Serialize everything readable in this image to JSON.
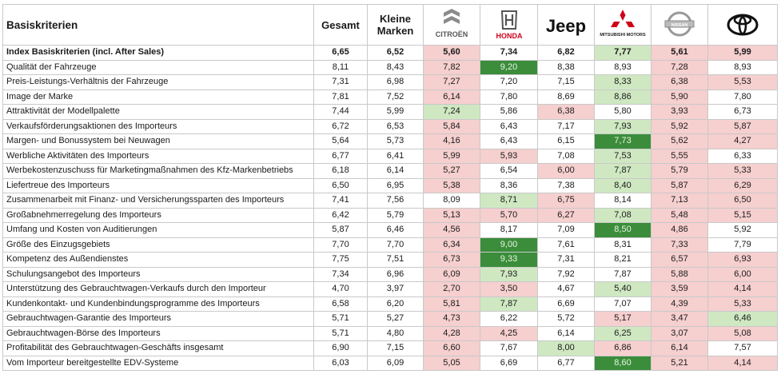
{
  "table": {
    "header": {
      "criteria": "Basiskriterien",
      "gesamt": "Gesamt",
      "kleine": "Kleine\nMarken"
    },
    "brands": [
      {
        "name": "citroen",
        "logo_text": "CITROËN",
        "icon": "citroen-logo-icon"
      },
      {
        "name": "honda",
        "logo_text": "HONDA",
        "icon": "honda-logo-icon"
      },
      {
        "name": "jeep",
        "logo_text": "Jeep",
        "icon": "jeep-logo-icon"
      },
      {
        "name": "mitsubishi",
        "logo_text": "MITSUBISHI MOTORS",
        "icon": "mitsubishi-logo-icon"
      },
      {
        "name": "nissan",
        "logo_text": "NISSAN",
        "icon": "nissan-logo-icon"
      },
      {
        "name": "toyota",
        "logo_text": "",
        "icon": "toyota-logo-icon"
      }
    ],
    "colors": {
      "red": "#f6cfcf",
      "light_green": "#cfe8c2",
      "dark_green": "#3b8d3b"
    },
    "rows": [
      {
        "label": "Index Basiskriterien (incl. After Sales)",
        "bold": true,
        "gesamt": "6,65",
        "kleine": "6,52",
        "vals": [
          "5,60",
          "7,34",
          "6,82",
          "7,77",
          "5,61",
          "5,99"
        ],
        "colors": [
          "r",
          "",
          "",
          "lg",
          "r",
          "r"
        ]
      },
      {
        "label": "Qualität der Fahrzeuge",
        "gesamt": "8,11",
        "kleine": "8,43",
        "vals": [
          "7,82",
          "9,20",
          "8,38",
          "8,93",
          "7,28",
          "8,93"
        ],
        "colors": [
          "r",
          "dg",
          "",
          "",
          "r",
          ""
        ]
      },
      {
        "label": "Preis-Leistungs-Verhältnis der Fahrzeuge",
        "gesamt": "7,31",
        "kleine": "6,98",
        "vals": [
          "7,27",
          "7,20",
          "7,15",
          "8,33",
          "6,38",
          "5,53"
        ],
        "colors": [
          "r",
          "",
          "",
          "lg",
          "r",
          "r"
        ]
      },
      {
        "label": "Image der Marke",
        "gesamt": "7,81",
        "kleine": "7,52",
        "vals": [
          "6,14",
          "7,80",
          "8,69",
          "8,86",
          "5,90",
          "7,80"
        ],
        "colors": [
          "r",
          "",
          "",
          "lg",
          "r",
          ""
        ]
      },
      {
        "label": "Attraktivität der Modellpalette",
        "gesamt": "7,44",
        "kleine": "5,99",
        "vals": [
          "7,24",
          "5,86",
          "6,38",
          "5,80",
          "3,93",
          "6,73"
        ],
        "colors": [
          "lg",
          "",
          "r",
          "",
          "r",
          ""
        ]
      },
      {
        "label": "Verkaufsförderungsaktionen des Importeurs",
        "gesamt": "6,72",
        "kleine": "6,53",
        "vals": [
          "5,84",
          "6,43",
          "7,17",
          "7,93",
          "5,92",
          "5,87"
        ],
        "colors": [
          "r",
          "",
          "",
          "lg",
          "r",
          "r"
        ]
      },
      {
        "label": "Margen- und Bonussystem bei Neuwagen",
        "gesamt": "5,64",
        "kleine": "5,73",
        "vals": [
          "4,16",
          "6,43",
          "6,15",
          "7,73",
          "5,62",
          "4,27"
        ],
        "colors": [
          "r",
          "",
          "",
          "dg",
          "r",
          "r"
        ]
      },
      {
        "label": "Werbliche Aktivitäten des Importeurs",
        "gesamt": "6,77",
        "kleine": "6,41",
        "vals": [
          "5,99",
          "5,93",
          "7,08",
          "7,53",
          "5,55",
          "6,33"
        ],
        "colors": [
          "r",
          "r",
          "",
          "lg",
          "r",
          ""
        ]
      },
      {
        "label": "Werbekostenzuschuss für Marketingmaßnahmen des Kfz-Markenbetriebs",
        "gesamt": "6,18",
        "kleine": "6,14",
        "vals": [
          "5,27",
          "6,54",
          "6,00",
          "7,87",
          "5,79",
          "5,33"
        ],
        "colors": [
          "r",
          "",
          "r",
          "lg",
          "r",
          "r"
        ]
      },
      {
        "label": "Liefertreue des Importeurs",
        "gesamt": "6,50",
        "kleine": "6,95",
        "vals": [
          "5,38",
          "8,36",
          "7,38",
          "8,40",
          "5,87",
          "6,29"
        ],
        "colors": [
          "r",
          "",
          "",
          "lg",
          "r",
          "r"
        ]
      },
      {
        "label": "Zusammenarbeit mit Finanz- und Versicherungssparten des Importeurs",
        "gesamt": "7,41",
        "kleine": "7,56",
        "vals": [
          "8,09",
          "8,71",
          "6,75",
          "8,14",
          "7,13",
          "6,50"
        ],
        "colors": [
          "",
          "lg",
          "r",
          "",
          "r",
          "r"
        ]
      },
      {
        "label": "Großabnehmerregelung des Importeurs",
        "gesamt": "6,42",
        "kleine": "5,79",
        "vals": [
          "5,13",
          "5,70",
          "6,27",
          "7,08",
          "5,48",
          "5,15"
        ],
        "colors": [
          "r",
          "r",
          "r",
          "lg",
          "r",
          "r"
        ]
      },
      {
        "label": "Umfang und Kosten von Auditierungen",
        "gesamt": "5,87",
        "kleine": "6,46",
        "vals": [
          "4,56",
          "8,17",
          "7,09",
          "8,50",
          "4,86",
          "5,92"
        ],
        "colors": [
          "r",
          "",
          "",
          "dg",
          "r",
          ""
        ]
      },
      {
        "label": "Größe des Einzugsgebiets",
        "gesamt": "7,70",
        "kleine": "7,70",
        "vals": [
          "6,34",
          "9,00",
          "7,61",
          "8,31",
          "7,33",
          "7,79"
        ],
        "colors": [
          "r",
          "dg",
          "",
          "",
          "r",
          ""
        ]
      },
      {
        "label": "Kompetenz des Außendienstes",
        "gesamt": "7,75",
        "kleine": "7,51",
        "vals": [
          "6,73",
          "9,33",
          "7,31",
          "8,21",
          "6,57",
          "6,93"
        ],
        "colors": [
          "r",
          "dg",
          "",
          "",
          "r",
          "r"
        ]
      },
      {
        "label": "Schulungsangebot des Importeurs",
        "gesamt": "7,34",
        "kleine": "6,96",
        "vals": [
          "6,09",
          "7,93",
          "7,92",
          "7,87",
          "5,88",
          "6,00"
        ],
        "colors": [
          "r",
          "lg",
          "",
          "",
          "r",
          "r"
        ]
      },
      {
        "label": "Unterstützung des Gebrauchtwagen-Verkaufs durch den Importeur",
        "gesamt": "4,70",
        "kleine": "3,97",
        "vals": [
          "2,70",
          "3,50",
          "4,67",
          "5,40",
          "3,59",
          "4,14"
        ],
        "colors": [
          "r",
          "r",
          "",
          "lg",
          "r",
          "r"
        ]
      },
      {
        "label": "Kundenkontakt- und Kundenbindungsprogramme des Importeurs",
        "gesamt": "6,58",
        "kleine": "6,20",
        "vals": [
          "5,81",
          "7,87",
          "6,69",
          "7,07",
          "4,39",
          "5,33"
        ],
        "colors": [
          "r",
          "lg",
          "",
          "",
          "r",
          "r"
        ]
      },
      {
        "label": "Gebrauchtwagen-Garantie des Importeurs",
        "gesamt": "5,71",
        "kleine": "5,27",
        "vals": [
          "4,73",
          "6,22",
          "5,72",
          "5,17",
          "3,47",
          "6,46"
        ],
        "colors": [
          "r",
          "",
          "",
          "r",
          "r",
          "lg"
        ]
      },
      {
        "label": "Gebrauchtwagen-Börse des Importeurs",
        "gesamt": "5,71",
        "kleine": "4,80",
        "vals": [
          "4,28",
          "4,25",
          "6,14",
          "6,25",
          "3,07",
          "5,08"
        ],
        "colors": [
          "r",
          "r",
          "",
          "lg",
          "r",
          "r"
        ]
      },
      {
        "label": "Profitabilität des Gebrauchtwagen-Geschäfts insgesamt",
        "gesamt": "6,90",
        "kleine": "7,15",
        "vals": [
          "6,60",
          "7,67",
          "8,00",
          "6,86",
          "6,14",
          "7,57"
        ],
        "colors": [
          "r",
          "",
          "lg",
          "r",
          "r",
          ""
        ]
      },
      {
        "label": "Vom Importeur bereitgestellte EDV-Systeme",
        "gesamt": "6,03",
        "kleine": "6,09",
        "vals": [
          "5,05",
          "6,69",
          "6,77",
          "8,60",
          "5,21",
          "4,14"
        ],
        "colors": [
          "r",
          "",
          "",
          "dg",
          "r",
          "r"
        ]
      }
    ]
  },
  "chart_data": {
    "type": "table",
    "columns": [
      "Basiskriterien",
      "Gesamt",
      "Kleine Marken",
      "Citroën",
      "Honda",
      "Jeep",
      "Mitsubishi",
      "Nissan",
      "Toyota"
    ],
    "rows": [
      [
        "Index Basiskriterien (incl. After Sales)",
        6.65,
        6.52,
        5.6,
        7.34,
        6.82,
        7.77,
        5.61,
        5.99
      ],
      [
        "Qualität der Fahrzeuge",
        8.11,
        8.43,
        7.82,
        9.2,
        8.38,
        8.93,
        7.28,
        8.93
      ],
      [
        "Preis-Leistungs-Verhältnis der Fahrzeuge",
        7.31,
        6.98,
        7.27,
        7.2,
        7.15,
        8.33,
        6.38,
        5.53
      ],
      [
        "Image der Marke",
        7.81,
        7.52,
        6.14,
        7.8,
        8.69,
        8.86,
        5.9,
        7.8
      ],
      [
        "Attraktivität der Modellpalette",
        7.44,
        5.99,
        7.24,
        5.86,
        6.38,
        5.8,
        3.93,
        6.73
      ],
      [
        "Verkaufsförderungsaktionen des Importeurs",
        6.72,
        6.53,
        5.84,
        6.43,
        7.17,
        7.93,
        5.92,
        5.87
      ],
      [
        "Margen- und Bonussystem bei Neuwagen",
        5.64,
        5.73,
        4.16,
        6.43,
        6.15,
        7.73,
        5.62,
        4.27
      ],
      [
        "Werbliche Aktivitäten des Importeurs",
        6.77,
        6.41,
        5.99,
        5.93,
        7.08,
        7.53,
        5.55,
        6.33
      ],
      [
        "Werbekostenzuschuss für Marketingmaßnahmen des Kfz-Markenbetriebs",
        6.18,
        6.14,
        5.27,
        6.54,
        6.0,
        7.87,
        5.79,
        5.33
      ],
      [
        "Liefertreue des Importeurs",
        6.5,
        6.95,
        5.38,
        8.36,
        7.38,
        8.4,
        5.87,
        6.29
      ],
      [
        "Zusammenarbeit mit Finanz- und Versicherungssparten des Importeurs",
        7.41,
        7.56,
        8.09,
        8.71,
        6.75,
        8.14,
        7.13,
        6.5
      ],
      [
        "Großabnehmerregelung des Importeurs",
        6.42,
        5.79,
        5.13,
        5.7,
        6.27,
        7.08,
        5.48,
        5.15
      ],
      [
        "Umfang und Kosten von Auditierungen",
        5.87,
        6.46,
        4.56,
        8.17,
        7.09,
        8.5,
        4.86,
        5.92
      ],
      [
        "Größe des Einzugsgebiets",
        7.7,
        7.7,
        6.34,
        9.0,
        7.61,
        8.31,
        7.33,
        7.79
      ],
      [
        "Kompetenz des Außendienstes",
        7.75,
        7.51,
        6.73,
        9.33,
        7.31,
        8.21,
        6.57,
        6.93
      ],
      [
        "Schulungsangebot des Importeurs",
        7.34,
        6.96,
        6.09,
        7.93,
        7.92,
        7.87,
        5.88,
        6.0
      ],
      [
        "Unterstützung des Gebrauchtwagen-Verkaufs durch den Importeur",
        4.7,
        3.97,
        2.7,
        3.5,
        4.67,
        5.4,
        3.59,
        4.14
      ],
      [
        "Kundenkontakt- und Kundenbindungsprogramme des Importeurs",
        6.58,
        6.2,
        5.81,
        7.87,
        6.69,
        7.07,
        4.39,
        5.33
      ],
      [
        "Gebrauchtwagen-Garantie des Importeurs",
        5.71,
        5.27,
        4.73,
        6.22,
        5.72,
        5.17,
        3.47,
        6.46
      ],
      [
        "Gebrauchtwagen-Börse des Importeurs",
        5.71,
        4.8,
        4.28,
        4.25,
        6.14,
        6.25,
        3.07,
        5.08
      ],
      [
        "Profitabilität des Gebrauchtwagen-Geschäfts insgesamt",
        6.9,
        7.15,
        6.6,
        7.67,
        8.0,
        6.86,
        6.14,
        7.57
      ],
      [
        "Vom Importeur bereitgestellte EDV-Systeme",
        6.03,
        6.09,
        5.05,
        6.69,
        6.77,
        8.6,
        5.21,
        4.14
      ]
    ]
  }
}
